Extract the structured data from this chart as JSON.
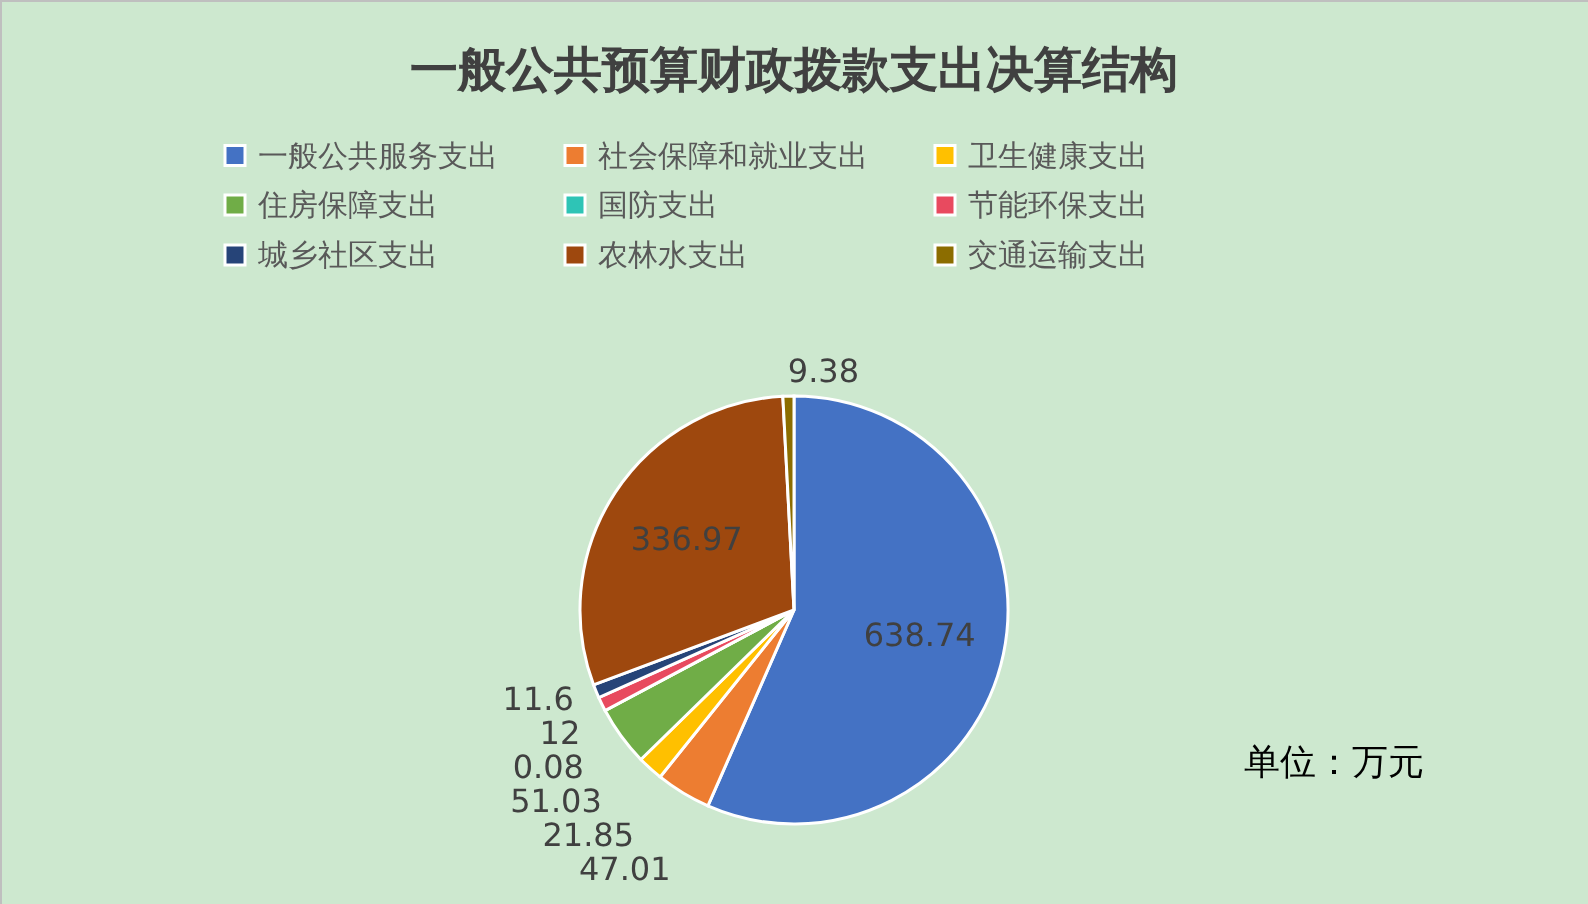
{
  "chart_data": {
    "type": "pie",
    "title": "一般公共预算财政拨款支出决算结构",
    "categories": [
      "一般公共服务支出",
      "社会保障和就业支出",
      "卫生健康支出",
      "住房保障支出",
      "国防支出",
      "节能环保支出",
      "城乡社区支出",
      "农林水支出",
      "交通运输支出"
    ],
    "values": [
      638.74,
      47.01,
      21.85,
      51.03,
      0.08,
      12,
      11.6,
      336.97,
      9.38
    ],
    "colors": [
      "#4472c4",
      "#ed7d31",
      "#ffc000",
      "#70ad47",
      "#2ec4b6",
      "#e84a5f",
      "#264478",
      "#9e480e",
      "#8c6d00"
    ],
    "data_labels": true,
    "legend": "top",
    "annotations": [
      "单位：万元"
    ]
  }
}
